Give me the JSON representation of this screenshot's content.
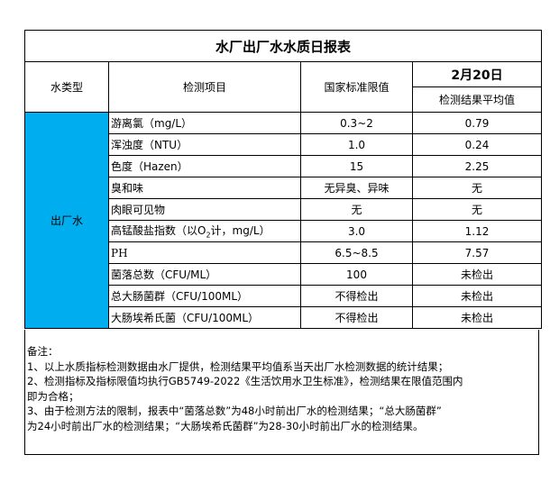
{
  "title": "水厂出厂水水质日报表",
  "headers": {
    "water_type": "水类型",
    "item": "检测项目",
    "standard": "国家标准限值",
    "date": "2月20日",
    "result": "检测结果平均值"
  },
  "water_type": "出厂水",
  "rows": [
    {
      "item": "游离氯（mg/L）",
      "standard": "0.3~2",
      "result": "0.79"
    },
    {
      "item": "浑浊度（NTU）",
      "standard": "1.0",
      "result": "0.24"
    },
    {
      "item": "色度（Hazen）",
      "standard": "15",
      "result": "2.25"
    },
    {
      "item": "臭和味",
      "standard": "无异臭、异味",
      "result": "无"
    },
    {
      "item": "肉眼可见物",
      "standard": "无",
      "result": "无"
    },
    {
      "item_pre": "高锰酸盐指数（以O",
      "item_sub": "2",
      "item_post": "计，mg/L）",
      "standard": "3.0",
      "result": "1.12"
    },
    {
      "item": "PH",
      "standard": "6.5~8.5",
      "result": "7.57"
    },
    {
      "item": "菌落总数（CFU/ML）",
      "standard": "100",
      "result": "未检出"
    },
    {
      "item": "总大肠菌群（CFU/100ML）",
      "standard": "不得检出",
      "result": "未检出"
    },
    {
      "item": "大肠埃希氏菌（CFU/100ML）",
      "standard": "不得检出",
      "result": "未检出"
    }
  ],
  "notes": [
    "备注：",
    "1、以上水质指标检测数据由水厂提供，检测结果平均值系当天出厂水检测数据的统计结果；",
    "2、检测指标及指标限值均执行GB5749-2022《生活饮用水卫生标准》，检测结果在限值范围内",
    "即为合格；",
    "3、由于检测方法的限制，报表中“菌落总数”为48小时前出厂水的检测结果；“总大肠菌群”",
    "为24小时前出厂水的检测结果；“大肠埃希氏菌群”为28-30小时前出厂水的检测结果。"
  ],
  "colors": {
    "water_type_bg": "#00aeef"
  }
}
